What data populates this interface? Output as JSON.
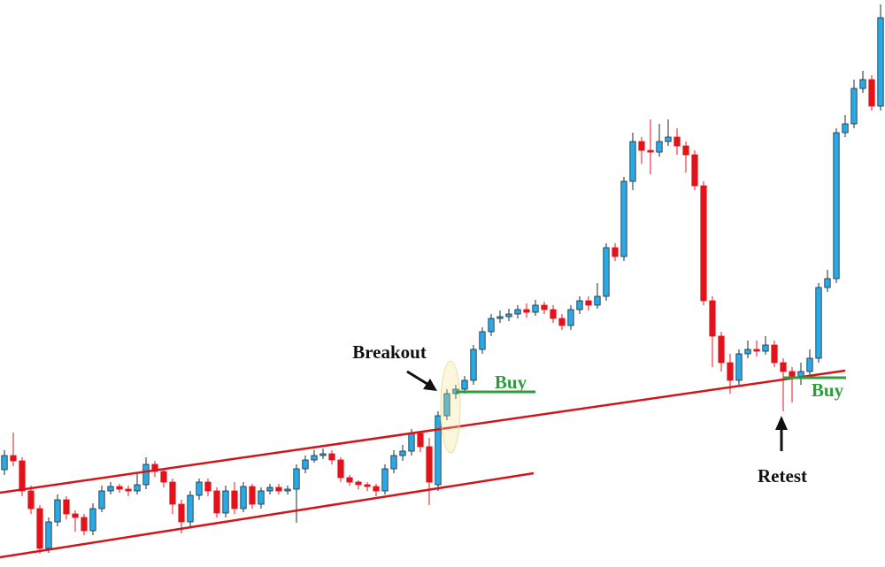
{
  "chart_data": {
    "type": "candlestick",
    "ylim": [
      0,
      641
    ],
    "up_color": "#29a9e6",
    "down_color": "#e3131b",
    "open": [
      110,
      126,
      120,
      86,
      66,
      21,
      51,
      76,
      60,
      56,
      41,
      66,
      86,
      91,
      88,
      86,
      93,
      116,
      108,
      96,
      71,
      51,
      81,
      96,
      86,
      61,
      86,
      66,
      91,
      71,
      86,
      90,
      86,
      88,
      111,
      121,
      126,
      128,
      121,
      101,
      96,
      93,
      91,
      86,
      111,
      126,
      131,
      151,
      136,
      93,
      171,
      196,
      201,
      211,
      246,
      266,
      281,
      283,
      286,
      291,
      288,
      296,
      291,
      281,
      273,
      291,
      301,
      296,
      306,
      361,
      351,
      436,
      481,
      471,
      469,
      481,
      486,
      476,
      466,
      431,
      301,
      261,
      231,
      211,
      241,
      246,
      244,
      251,
      231,
      221,
      213,
      221,
      236,
      316,
      326,
      491,
      501,
      541,
      551,
      521
    ],
    "high": [
      132,
      152,
      124,
      92,
      70,
      56,
      82,
      80,
      64,
      60,
      72,
      92,
      96,
      94,
      92,
      106,
      124,
      120,
      112,
      100,
      76,
      86,
      100,
      100,
      90,
      92,
      96,
      96,
      94,
      90,
      94,
      94,
      92,
      116,
      126,
      132,
      134,
      132,
      124,
      104,
      98,
      96,
      94,
      116,
      132,
      138,
      156,
      154,
      146,
      176,
      201,
      206,
      216,
      251,
      271,
      286,
      290,
      292,
      296,
      298,
      302,
      300,
      296,
      286,
      296,
      306,
      306,
      321,
      366,
      366,
      441,
      491,
      486,
      506,
      501,
      506,
      496,
      481,
      471,
      436,
      306,
      266,
      241,
      246,
      256,
      256,
      261,
      256,
      236,
      226,
      231,
      246,
      321,
      336,
      496,
      511,
      551,
      561,
      556,
      636
    ],
    "low": [
      104,
      114,
      80,
      60,
      15,
      16,
      46,
      54,
      40,
      36,
      36,
      62,
      82,
      84,
      80,
      82,
      88,
      102,
      90,
      60,
      38,
      46,
      76,
      80,
      56,
      56,
      60,
      62,
      66,
      66,
      82,
      82,
      82,
      50,
      106,
      118,
      122,
      116,
      96,
      92,
      88,
      86,
      80,
      82,
      106,
      120,
      126,
      130,
      70,
      86,
      166,
      190,
      196,
      206,
      241,
      261,
      276,
      278,
      281,
      282,
      284,
      286,
      276,
      268,
      268,
      286,
      290,
      292,
      301,
      346,
      346,
      426,
      456,
      444,
      464,
      476,
      466,
      446,
      426,
      296,
      226,
      221,
      196,
      206,
      236,
      238,
      240,
      226,
      176,
      186,
      206,
      216,
      231,
      311,
      321,
      486,
      496,
      536,
      516,
      516
    ],
    "close": [
      126,
      120,
      86,
      66,
      21,
      51,
      76,
      60,
      56,
      41,
      66,
      86,
      91,
      88,
      86,
      93,
      116,
      108,
      96,
      71,
      51,
      81,
      96,
      86,
      61,
      86,
      66,
      91,
      71,
      86,
      90,
      86,
      88,
      111,
      121,
      126,
      128,
      121,
      101,
      96,
      93,
      91,
      86,
      111,
      126,
      131,
      151,
      136,
      96,
      171,
      196,
      201,
      211,
      246,
      266,
      281,
      283,
      286,
      291,
      288,
      296,
      291,
      281,
      273,
      291,
      301,
      296,
      306,
      361,
      351,
      436,
      481,
      471,
      469,
      481,
      486,
      476,
      466,
      431,
      301,
      261,
      231,
      211,
      241,
      246,
      244,
      251,
      231,
      221,
      213,
      221,
      236,
      316,
      326,
      491,
      501,
      541,
      551,
      521,
      621
    ],
    "annotations": {
      "breakout": "Breakout",
      "buy": [
        "Buy",
        "Buy"
      ],
      "retest": "Retest"
    }
  }
}
